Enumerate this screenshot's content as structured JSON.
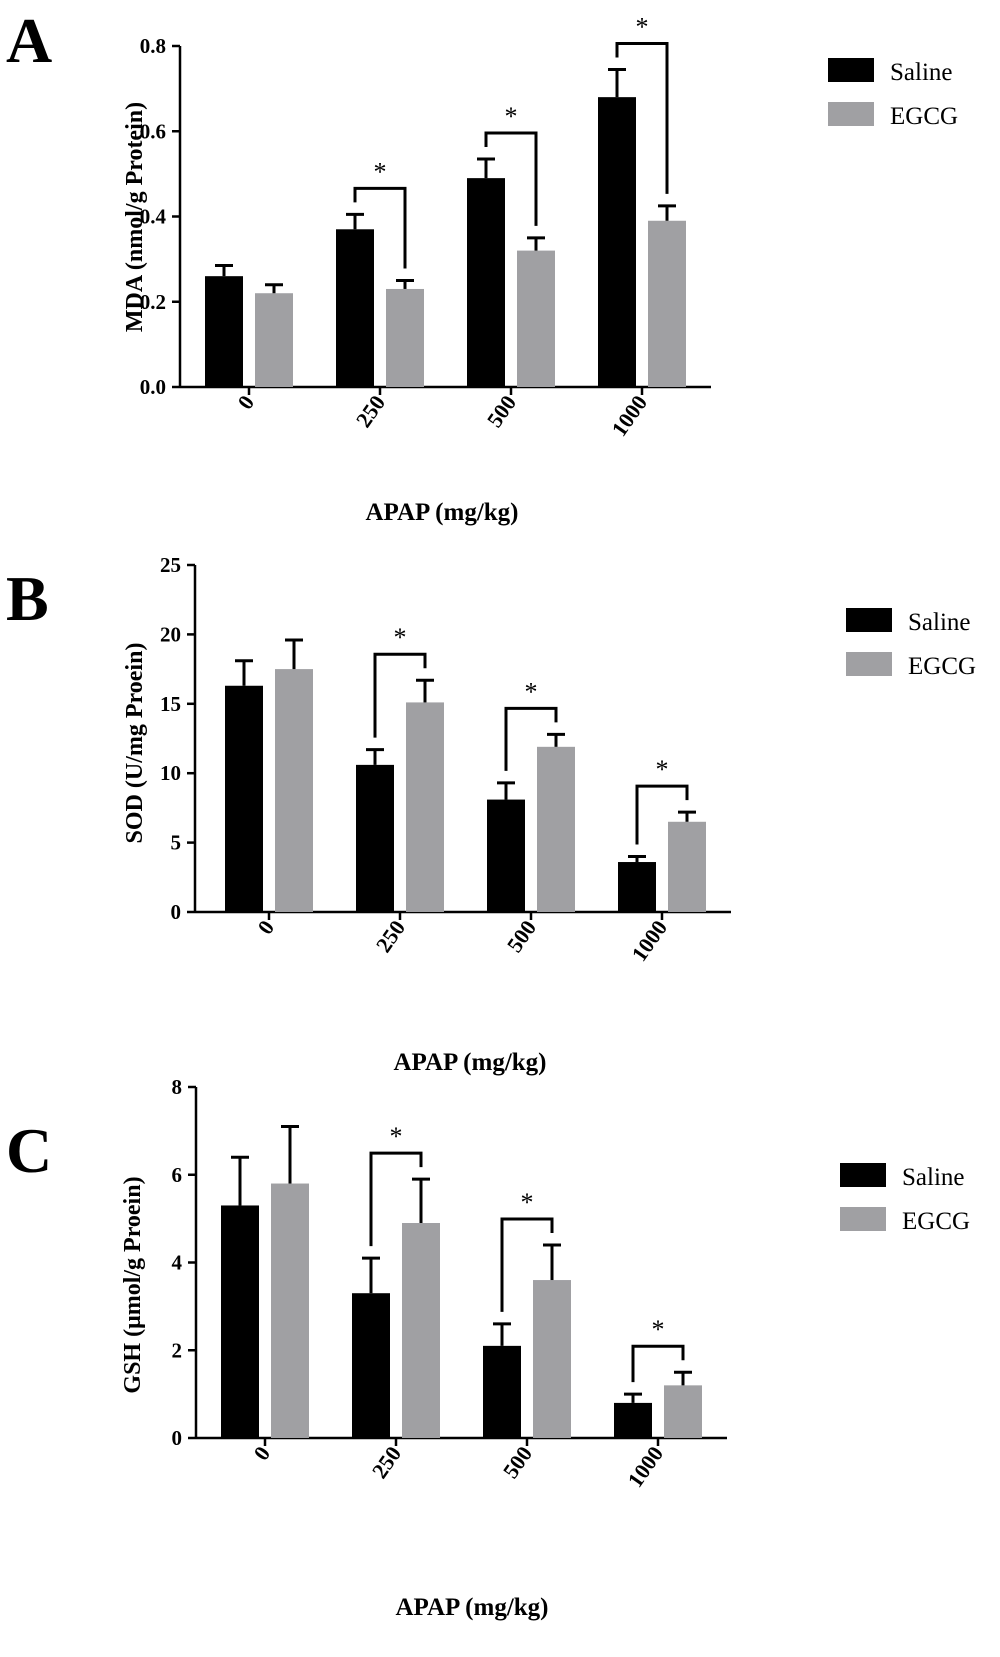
{
  "figure": {
    "panels": [
      {
        "letter": "A"
      },
      {
        "letter": "B"
      },
      {
        "letter": "C"
      }
    ]
  },
  "chart_data": [
    {
      "type": "bar",
      "panel": "A",
      "categories": [
        "0",
        "250",
        "500",
        "1000"
      ],
      "xlabel": "APAP (mg/kg)",
      "ylabel": "MDA (nmol/g Protein)",
      "ylim": [
        0,
        0.8
      ],
      "yticks": [
        "0.0",
        "0.2",
        "0.4",
        "0.6",
        "0.8"
      ],
      "series": [
        {
          "name": "Saline",
          "color": "#000000",
          "values": [
            0.26,
            0.37,
            0.49,
            0.68
          ],
          "errors": [
            0.025,
            0.035,
            0.045,
            0.065
          ]
        },
        {
          "name": "EGCG",
          "color": "#a0a0a3",
          "values": [
            0.22,
            0.23,
            0.32,
            0.39
          ],
          "errors": [
            0.02,
            0.02,
            0.03,
            0.035
          ]
        }
      ],
      "significance": [
        {
          "category": "250",
          "label": "*"
        },
        {
          "category": "500",
          "label": "*"
        },
        {
          "category": "1000",
          "label": "*"
        }
      ],
      "legend": "top-right",
      "grid": false
    },
    {
      "type": "bar",
      "panel": "B",
      "categories": [
        "0",
        "250",
        "500",
        "1000"
      ],
      "xlabel": "APAP (mg/kg)",
      "ylabel": "SOD (U/mg Proein)",
      "ylim": [
        0,
        25
      ],
      "yticks": [
        "0",
        "5",
        "10",
        "15",
        "20",
        "25"
      ],
      "series": [
        {
          "name": "Saline",
          "color": "#000000",
          "values": [
            16.3,
            10.6,
            8.1,
            3.6
          ],
          "errors": [
            1.8,
            1.1,
            1.2,
            0.4
          ]
        },
        {
          "name": "EGCG",
          "color": "#a0a0a3",
          "values": [
            17.5,
            15.1,
            11.9,
            6.5
          ],
          "errors": [
            2.1,
            1.6,
            0.9,
            0.7
          ]
        }
      ],
      "significance": [
        {
          "category": "250",
          "label": "*"
        },
        {
          "category": "500",
          "label": "*"
        },
        {
          "category": "1000",
          "label": "*"
        }
      ],
      "legend": "top-right",
      "grid": false
    },
    {
      "type": "bar",
      "panel": "C",
      "categories": [
        "0",
        "250",
        "500",
        "1000"
      ],
      "xlabel": "APAP (mg/kg)",
      "ylabel": "GSH (μmol/g Proein)",
      "ylim": [
        0,
        8
      ],
      "yticks": [
        "0",
        "2",
        "4",
        "6",
        "8"
      ],
      "series": [
        {
          "name": "Saline",
          "color": "#000000",
          "values": [
            5.3,
            3.3,
            2.1,
            0.8
          ],
          "errors": [
            1.1,
            0.8,
            0.5,
            0.2
          ]
        },
        {
          "name": "EGCG",
          "color": "#a0a0a3",
          "values": [
            5.8,
            4.9,
            3.6,
            1.2
          ],
          "errors": [
            1.3,
            1.0,
            0.8,
            0.3
          ]
        }
      ],
      "significance": [
        {
          "category": "250",
          "label": "*"
        },
        {
          "category": "500",
          "label": "*"
        },
        {
          "category": "1000",
          "label": "*"
        }
      ],
      "legend": "top-right",
      "grid": false
    }
  ]
}
